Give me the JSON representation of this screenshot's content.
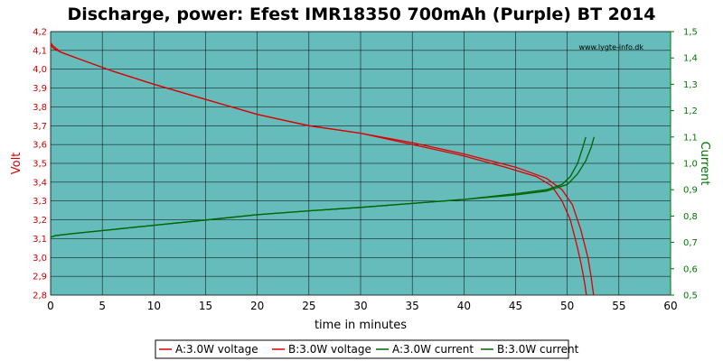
{
  "chart_data": {
    "type": "line",
    "title": "Discharge, power: Efest IMR18350 700mAh (Purple) BT 2014",
    "watermark": "www.lygte-info.dk",
    "xlabel": "time in minutes",
    "ylabel_left": "Volt",
    "ylabel_right": "Current",
    "xlim": [
      0,
      60
    ],
    "ylim_left": [
      2.8,
      4.2
    ],
    "ylim_right": [
      0.5,
      1.5
    ],
    "x_ticks": [
      "0",
      "5",
      "10",
      "15",
      "20",
      "25",
      "30",
      "35",
      "40",
      "45",
      "50",
      "55",
      "60"
    ],
    "y_left_ticks": [
      "2,8",
      "2,9",
      "3,0",
      "3,1",
      "3,2",
      "3,3",
      "3,4",
      "3,5",
      "3,6",
      "3,7",
      "3,8",
      "3,9",
      "4,0",
      "4,1",
      "4,2"
    ],
    "y_right_ticks": [
      "0,5",
      "0,6",
      "0,7",
      "0,8",
      "0,9",
      "1,0",
      "1,1",
      "1,2",
      "1,3",
      "1,4",
      "1,5"
    ],
    "grid": true,
    "legend_position": "bottom",
    "background_color": "#66bbbb",
    "series": [
      {
        "name": "A:3.0W voltage",
        "axis": "left",
        "color": "#dd0000",
        "x": [
          0,
          0.3,
          1,
          3,
          6,
          10,
          15,
          20,
          25,
          30,
          35,
          40,
          44,
          47,
          48.5,
          49.5,
          50.3,
          51,
          51.4,
          51.7,
          51.85
        ],
        "y": [
          4.14,
          4.12,
          4.09,
          4.05,
          3.99,
          3.92,
          3.84,
          3.76,
          3.7,
          3.66,
          3.6,
          3.54,
          3.48,
          3.43,
          3.38,
          3.3,
          3.2,
          3.05,
          2.95,
          2.86,
          2.8
        ]
      },
      {
        "name": "B:3.0W voltage",
        "axis": "left",
        "color": "#dd0000",
        "x": [
          0,
          0.3,
          1,
          3,
          6,
          10,
          15,
          20,
          25,
          30,
          35,
          40,
          45,
          48,
          49.5,
          50.5,
          51.3,
          52,
          52.3,
          52.55
        ],
        "y": [
          4.13,
          4.11,
          4.09,
          4.05,
          3.99,
          3.92,
          3.84,
          3.76,
          3.7,
          3.66,
          3.61,
          3.55,
          3.48,
          3.42,
          3.36,
          3.28,
          3.15,
          3.0,
          2.9,
          2.8
        ]
      },
      {
        "name": "A:3.0W current",
        "axis": "right",
        "color": "#006600",
        "x": [
          0,
          0.5,
          2,
          5,
          10,
          15,
          20,
          25,
          30,
          35,
          40,
          45,
          48,
          49.5,
          50.3,
          51,
          51.5,
          51.8
        ],
        "y": [
          0.72,
          0.726,
          0.733,
          0.745,
          0.765,
          0.785,
          0.805,
          0.82,
          0.833,
          0.848,
          0.863,
          0.885,
          0.9,
          0.92,
          0.95,
          1.0,
          1.06,
          1.1
        ]
      },
      {
        "name": "B:3.0W current",
        "axis": "right",
        "color": "#006600",
        "x": [
          0,
          0.5,
          2,
          5,
          10,
          15,
          20,
          25,
          30,
          35,
          40,
          45,
          48,
          50,
          51,
          51.8,
          52.3,
          52.6
        ],
        "y": [
          0.72,
          0.726,
          0.733,
          0.745,
          0.765,
          0.785,
          0.805,
          0.82,
          0.833,
          0.848,
          0.863,
          0.88,
          0.895,
          0.92,
          0.96,
          1.01,
          1.06,
          1.1
        ]
      }
    ]
  }
}
